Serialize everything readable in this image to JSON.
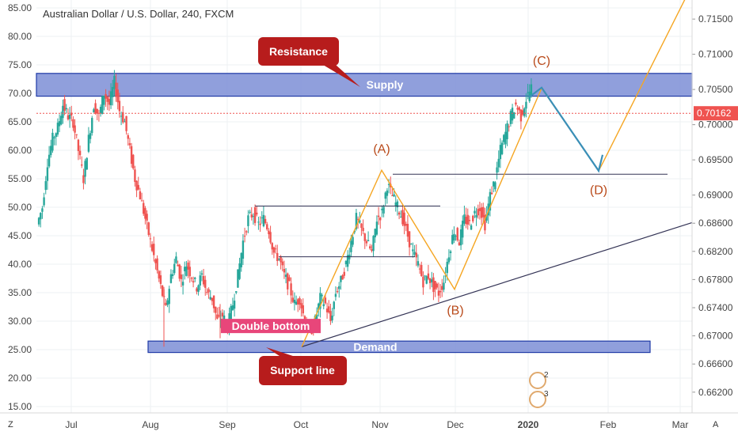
{
  "chart_data": {
    "type": "candlestick",
    "title": "Australian Dollar / U.S. Dollar, 240, FXCM",
    "left_axis": {
      "labels": [
        "85.00",
        "80.00",
        "75.00",
        "70.00",
        "65.00",
        "60.00",
        "55.00",
        "50.00",
        "45.00",
        "40.00",
        "35.00",
        "30.00",
        "25.00",
        "20.00",
        "15.00"
      ],
      "range": [
        15,
        85
      ]
    },
    "right_axis": {
      "labels": [
        "0.71500",
        "0.71000",
        "0.70500",
        "0.70000",
        "0.69500",
        "0.69000",
        "0.68600",
        "0.68200",
        "0.67800",
        "0.67400",
        "0.67000",
        "0.66600",
        "0.66200"
      ],
      "values": [
        0.715,
        0.71,
        0.705,
        0.7,
        0.695,
        0.69,
        0.686,
        0.682,
        0.678,
        0.674,
        0.67,
        0.666,
        0.662
      ]
    },
    "x_axis_labels": [
      "Jul",
      "Aug",
      "Sep",
      "Oct",
      "Nov",
      "Dec",
      "2020",
      "Feb",
      "Mar"
    ],
    "current_price": {
      "label": "0.70162",
      "left_value": 66.5
    },
    "price_path": [
      [
        0,
        47
      ],
      [
        5,
        50
      ],
      [
        10,
        58
      ],
      [
        15,
        62
      ],
      [
        20,
        64
      ],
      [
        25,
        68
      ],
      [
        30,
        66
      ],
      [
        35,
        65
      ],
      [
        40,
        60
      ],
      [
        45,
        55
      ],
      [
        50,
        62
      ],
      [
        55,
        68
      ],
      [
        60,
        66
      ],
      [
        65,
        70
      ],
      [
        70,
        68
      ],
      [
        75,
        72
      ],
      [
        80,
        67
      ],
      [
        85,
        65
      ],
      [
        90,
        60
      ],
      [
        95,
        55
      ],
      [
        100,
        52
      ],
      [
        105,
        48
      ],
      [
        110,
        44
      ],
      [
        115,
        40
      ],
      [
        120,
        36
      ],
      [
        125,
        32
      ],
      [
        130,
        38
      ],
      [
        135,
        41
      ],
      [
        140,
        37
      ],
      [
        145,
        40
      ],
      [
        150,
        38
      ],
      [
        155,
        36
      ],
      [
        160,
        38
      ],
      [
        165,
        35
      ],
      [
        170,
        34
      ],
      [
        175,
        30
      ],
      [
        180,
        31
      ],
      [
        185,
        29
      ],
      [
        190,
        33
      ],
      [
        195,
        38
      ],
      [
        200,
        44
      ],
      [
        205,
        48
      ],
      [
        210,
        49
      ],
      [
        215,
        47
      ],
      [
        220,
        48
      ],
      [
        225,
        46
      ],
      [
        230,
        42
      ],
      [
        235,
        41
      ],
      [
        240,
        38
      ],
      [
        245,
        36
      ],
      [
        250,
        33
      ],
      [
        255,
        34
      ],
      [
        260,
        30
      ],
      [
        265,
        28
      ],
      [
        270,
        30
      ],
      [
        275,
        34
      ],
      [
        280,
        33
      ],
      [
        285,
        30
      ],
      [
        290,
        35
      ],
      [
        295,
        37
      ],
      [
        300,
        40
      ],
      [
        305,
        44
      ],
      [
        310,
        48
      ],
      [
        315,
        46
      ],
      [
        320,
        44
      ],
      [
        325,
        42
      ],
      [
        330,
        48
      ],
      [
        335,
        49
      ],
      [
        340,
        54
      ],
      [
        345,
        52
      ],
      [
        350,
        50
      ],
      [
        355,
        48
      ],
      [
        360,
        45
      ],
      [
        365,
        42
      ],
      [
        370,
        40
      ],
      [
        375,
        37
      ],
      [
        380,
        38
      ],
      [
        385,
        36
      ],
      [
        390,
        35
      ],
      [
        395,
        37
      ],
      [
        400,
        42
      ],
      [
        405,
        46
      ],
      [
        410,
        44
      ],
      [
        415,
        48
      ],
      [
        420,
        47
      ],
      [
        425,
        49
      ],
      [
        430,
        50
      ],
      [
        435,
        47
      ],
      [
        440,
        52
      ],
      [
        445,
        55
      ],
      [
        450,
        60
      ],
      [
        455,
        63
      ],
      [
        460,
        66
      ],
      [
        465,
        68
      ],
      [
        470,
        66
      ],
      [
        475,
        69
      ],
      [
        480,
        71
      ]
    ],
    "annotations": {
      "resistance": "Resistance",
      "supply": "Supply",
      "demand": "Demand",
      "double_bottom": "Double bottom",
      "support_line": "Support line",
      "wave_a": "(A)",
      "wave_b": "(B)",
      "wave_c": "(C)",
      "wave_d": "(D)"
    },
    "zones": [
      {
        "name": "Supply",
        "top": 73.5,
        "bottom": 69.5
      },
      {
        "name": "Demand",
        "top": 26.5,
        "bottom": 24.5
      }
    ],
    "colors": {
      "up": "#26a69a",
      "down": "#ef5350",
      "zone_fill": "#7c8ed6",
      "zone_border": "#1f3aa6",
      "callout": "#b71c1c",
      "wave_path": "#f5a623",
      "projection": "#3a8fb7",
      "level_line": "#333355",
      "price_tag": "#ef5350"
    },
    "badges": [
      "2",
      "3"
    ],
    "corner_labels": {
      "bottom_left": "Z",
      "bottom_right": "A"
    }
  }
}
